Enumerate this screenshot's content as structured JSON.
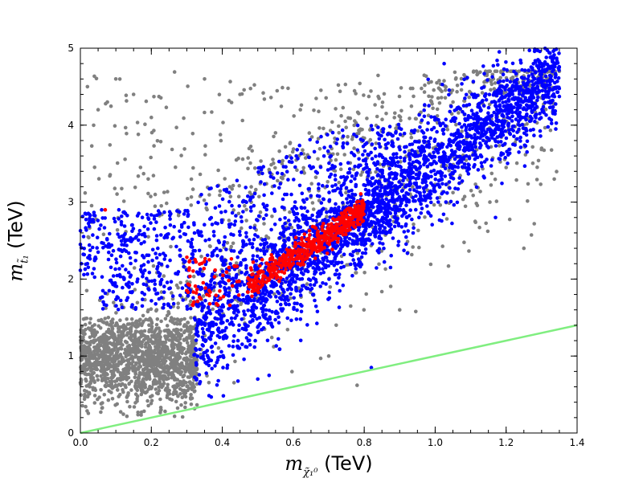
{
  "chart_data": {
    "type": "scatter",
    "title": "",
    "xlabel": {
      "symbol": "m",
      "subscript": "χ̃₁⁰",
      "unit": "(TeV)"
    },
    "ylabel": {
      "symbol": "m",
      "subscript": "t̃₁",
      "unit": "(TeV)"
    },
    "xlim": [
      0.0,
      1.4
    ],
    "ylim": [
      0,
      5
    ],
    "x_ticks": [
      0.0,
      0.2,
      0.4,
      0.6,
      0.8,
      1.0,
      1.2,
      1.4
    ],
    "x_tick_labels": [
      "0.0",
      "0.2",
      "0.4",
      "0.6",
      "0.8",
      "1.0",
      "1.2",
      "1.4"
    ],
    "y_ticks": [
      0,
      1,
      2,
      3,
      4,
      5
    ],
    "y_tick_labels": [
      "0",
      "1",
      "2",
      "3",
      "4",
      "5"
    ],
    "grid": false,
    "legend": "none",
    "colors": {
      "gray": "#808080",
      "blue": "#0000ff",
      "red": "#ff0000",
      "green": "#80ee80"
    },
    "series": [
      {
        "color": "#808080",
        "regions": [
          {
            "shape": "blob",
            "x_range": [
              0.0,
              0.33
            ],
            "y_range": [
              0.2,
              1.5
            ],
            "n": 1400
          },
          {
            "shape": "band_edge",
            "x_range": [
              0.0,
              1.35
            ],
            "y_range": [
              0.3,
              4.7
            ],
            "n": 700
          },
          {
            "shape": "upper_scatter",
            "x_range": [
              0.0,
              1.35
            ],
            "y_range": [
              2.5,
              4.7
            ],
            "n": 350
          }
        ],
        "points": [
          [
            0.02,
            4.5
          ],
          [
            0.05,
            4.2
          ],
          [
            0.1,
            4.6
          ],
          [
            0.15,
            4.4
          ],
          [
            0.2,
            4.1
          ],
          [
            0.35,
            4.6
          ],
          [
            0.45,
            4.4
          ],
          [
            0.55,
            3.9
          ],
          [
            0.62,
            4.2
          ],
          [
            1.2,
            3.45
          ],
          [
            1.3,
            3.7
          ],
          [
            1.25,
            2.4
          ],
          [
            0.78,
            0.62
          ],
          [
            0.9,
            1.6
          ],
          [
            0.7,
            1.0
          ]
        ]
      },
      {
        "color": "#0000ff",
        "regions": [
          {
            "shape": "diagonal_band",
            "x_range": [
              0.32,
              1.35
            ],
            "y_range": [
              1.2,
              4.7
            ],
            "n": 2600
          },
          {
            "shape": "wedge",
            "x_range": [
              0.0,
              0.9
            ],
            "y_range": [
              1.0,
              4.0
            ],
            "n": 900
          }
        ],
        "points": [
          [
            1.17,
            2.8
          ],
          [
            0.82,
            0.85
          ],
          [
            0.5,
            0.7
          ],
          [
            0.0,
            2.45
          ],
          [
            0.02,
            2.2
          ],
          [
            0.06,
            2.9
          ],
          [
            1.34,
            3.95
          ]
        ]
      },
      {
        "color": "#ff0000",
        "regions": [
          {
            "shape": "diagonal_band",
            "x_range": [
              0.47,
              0.8
            ],
            "y_range": [
              1.9,
              2.9
            ],
            "n": 520
          },
          {
            "shape": "cluster",
            "x_range": [
              0.3,
              0.45
            ],
            "y_range": [
              1.65,
              2.3
            ],
            "n": 55
          }
        ],
        "points": [
          [
            0.07,
            2.9
          ],
          [
            0.3,
            1.85
          ],
          [
            0.32,
            1.7
          ]
        ]
      }
    ],
    "lines": [
      {
        "color": "#80ee80",
        "x": [
          0.0,
          1.4
        ],
        "y": [
          0.0,
          1.4
        ]
      }
    ]
  }
}
